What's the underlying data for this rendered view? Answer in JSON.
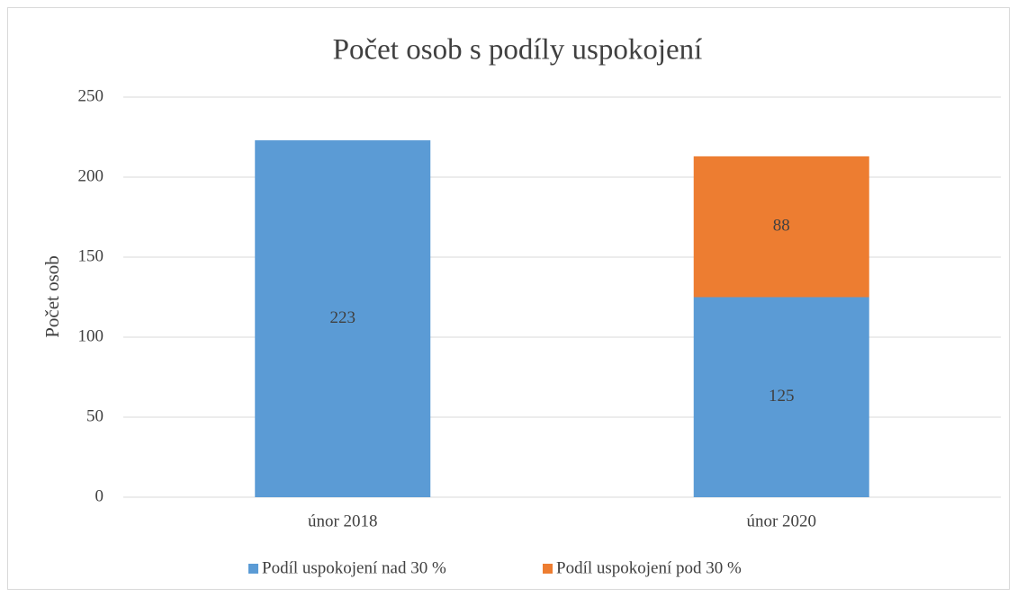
{
  "chart_data": {
    "type": "stacked_bar",
    "title": "Počet osob s podíly uspokojení",
    "y_label": "Počet osob",
    "categories": [
      "únor 2018",
      "únor 2020"
    ],
    "series": [
      {
        "name": "Podíl uspokojení nad 30 %",
        "color": "#5b9bd5",
        "values": [
          223,
          125
        ]
      },
      {
        "name": "Podíl uspokojení pod 30 %",
        "color": "#ed7d31",
        "values": [
          null,
          88
        ]
      }
    ],
    "ylim": [
      0,
      250
    ],
    "yticks": [
      0,
      50,
      100,
      150,
      200,
      250
    ],
    "grid": true,
    "legend": "bottom"
  }
}
